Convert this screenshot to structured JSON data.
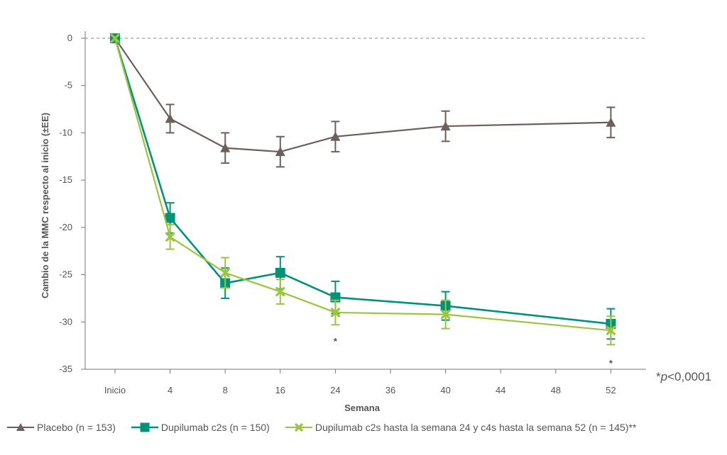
{
  "chart_data": {
    "type": "line",
    "title": "",
    "xlabel": "Semana",
    "ylabel": "Cambio de la MMC respecto al inicio (±EE)",
    "categories": [
      "Inicio",
      "4",
      "8",
      "16",
      "24",
      "36",
      "40",
      "44",
      "48",
      "52"
    ],
    "ylim": [
      -35,
      0
    ],
    "yticks": [
      0,
      -5,
      -10,
      -15,
      -20,
      -25,
      -30,
      -35
    ],
    "ytick_labels": [
      "0",
      "-5",
      "-10",
      "-15",
      "-20",
      "-25",
      "-30",
      "-35"
    ],
    "reference_line": 0,
    "series": [
      {
        "name": "Placebo (n = 153)",
        "color": "#6b605a",
        "marker": "triangle",
        "x": [
          "Inicio",
          "4",
          "8",
          "16",
          "24",
          "40",
          "52"
        ],
        "values": [
          0,
          -8.5,
          -11.6,
          -12.0,
          -10.4,
          -9.3,
          -8.9
        ],
        "err": [
          0,
          1.5,
          1.6,
          1.6,
          1.6,
          1.6,
          1.6
        ]
      },
      {
        "name": "Dupilumab c2s (n = 150)",
        "color": "#00927a",
        "marker": "square",
        "x": [
          "Inicio",
          "4",
          "8",
          "16",
          "24",
          "40",
          "52"
        ],
        "values": [
          0,
          -19.0,
          -25.9,
          -24.8,
          -27.4,
          -28.3,
          -30.2
        ],
        "err": [
          0,
          1.6,
          1.6,
          1.7,
          1.7,
          1.5,
          1.6
        ]
      },
      {
        "name": "Dupilumab c2s hasta la semana 24 y c4s hasta la semana 52 (n = 145)**",
        "color": "#9bc53d",
        "marker": "x",
        "x": [
          "Inicio",
          "4",
          "8",
          "16",
          "24",
          "40",
          "52"
        ],
        "values": [
          0,
          -21.0,
          -24.8,
          -26.8,
          -29.0,
          -29.2,
          -30.9
        ],
        "err": [
          0,
          1.3,
          1.6,
          1.3,
          1.3,
          1.5,
          1.5
        ]
      }
    ],
    "annotations": [
      {
        "text": "*",
        "x": "24"
      },
      {
        "text": "*",
        "x": "52"
      }
    ],
    "footnote": "*p<0,0001",
    "footnote_parts": {
      "prefix": "*",
      "italic": "p",
      "suffix": "<0,0001"
    }
  }
}
